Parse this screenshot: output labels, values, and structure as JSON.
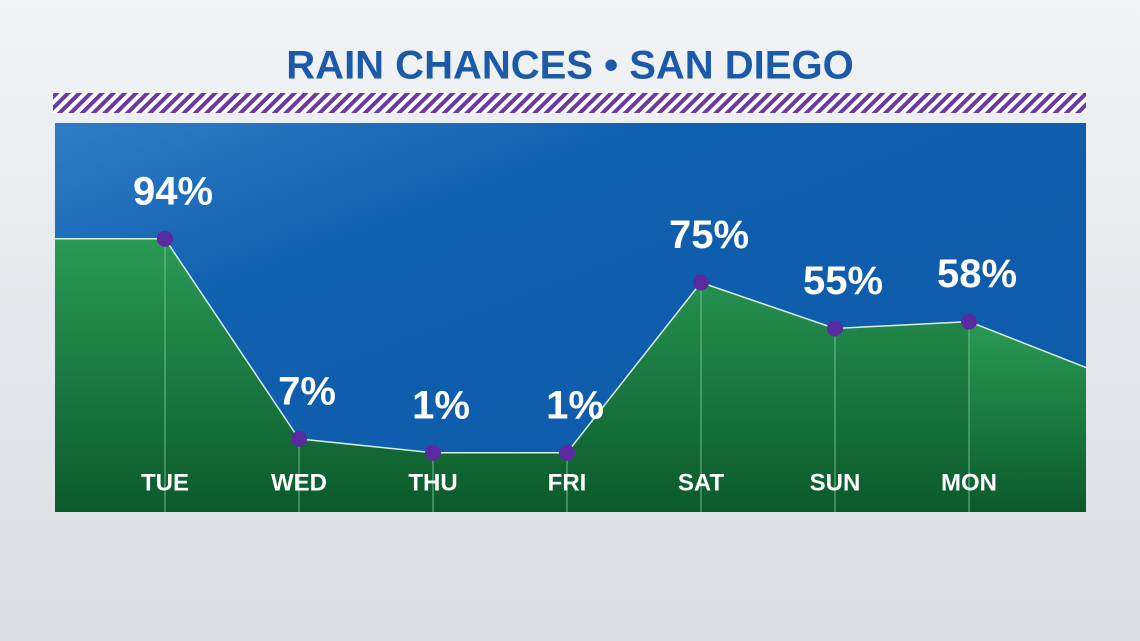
{
  "chart_data": {
    "type": "area",
    "title": "RAIN CHANCES • SAN DIEGO",
    "categories": [
      "TUE",
      "WED",
      "THU",
      "FRI",
      "SAT",
      "SUN",
      "MON"
    ],
    "values": [
      94,
      7,
      1,
      1,
      75,
      55,
      58
    ],
    "value_labels": [
      "94%",
      "7%",
      "1%",
      "1%",
      "75%",
      "55%",
      "58%"
    ],
    "color": "#1f8a48"
  }
}
